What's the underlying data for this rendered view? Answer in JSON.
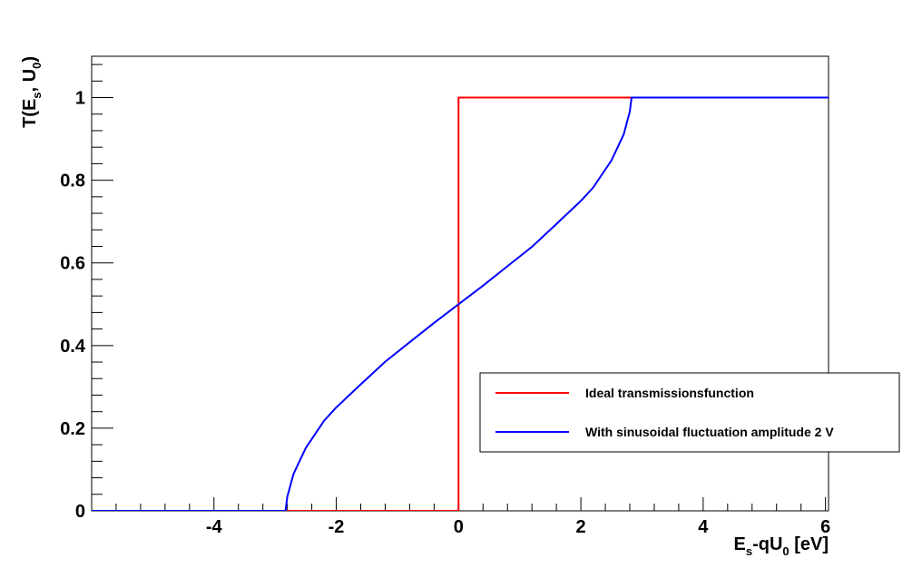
{
  "chart_data": {
    "type": "line",
    "title": "",
    "xlabel": {
      "main": "E",
      "sub": "s",
      "rest": "-qU",
      "sub2": "0",
      "tail": " [eV]"
    },
    "ylabel": {
      "main": "T(E",
      "sub": "s",
      "rest": ", U",
      "sub2": "0",
      "tail": ")"
    },
    "xlim": [
      -6,
      6.05
    ],
    "ylim": [
      0,
      1.1
    ],
    "x_ticks": [
      -4,
      -2,
      0,
      2,
      4,
      6
    ],
    "y_ticks": [
      0,
      0.2,
      0.4,
      0.6,
      0.8,
      1
    ],
    "x_tick_labels": [
      "-4",
      "-2",
      "0",
      "2",
      "4",
      "6"
    ],
    "y_tick_labels": [
      "0",
      "0.2",
      "0.4",
      "0.6",
      "0.8",
      "1"
    ],
    "grid": false,
    "legend_position": "lower-right",
    "series": [
      {
        "name": "Ideal transmissionsfunction",
        "color": "#ff0000",
        "x": [
          -6,
          0,
          0,
          6.05
        ],
        "y": [
          0,
          0,
          1,
          1
        ]
      },
      {
        "name": "With sinusoidal fluctuation amplitude 2 V",
        "color": "#0000ff",
        "x": [
          -6,
          -2.83,
          -2.8,
          -2.7,
          -2.5,
          -2.2,
          -2.0,
          -1.6,
          -1.2,
          -0.8,
          -0.4,
          0,
          0.4,
          0.8,
          1.2,
          1.6,
          2.0,
          2.2,
          2.5,
          2.7,
          2.8,
          2.83,
          6.05
        ],
        "y": [
          0,
          0,
          0.034,
          0.089,
          0.152,
          0.218,
          0.25,
          0.306,
          0.361,
          0.408,
          0.455,
          0.5,
          0.545,
          0.592,
          0.639,
          0.694,
          0.75,
          0.782,
          0.848,
          0.911,
          0.966,
          1,
          1
        ]
      }
    ]
  }
}
